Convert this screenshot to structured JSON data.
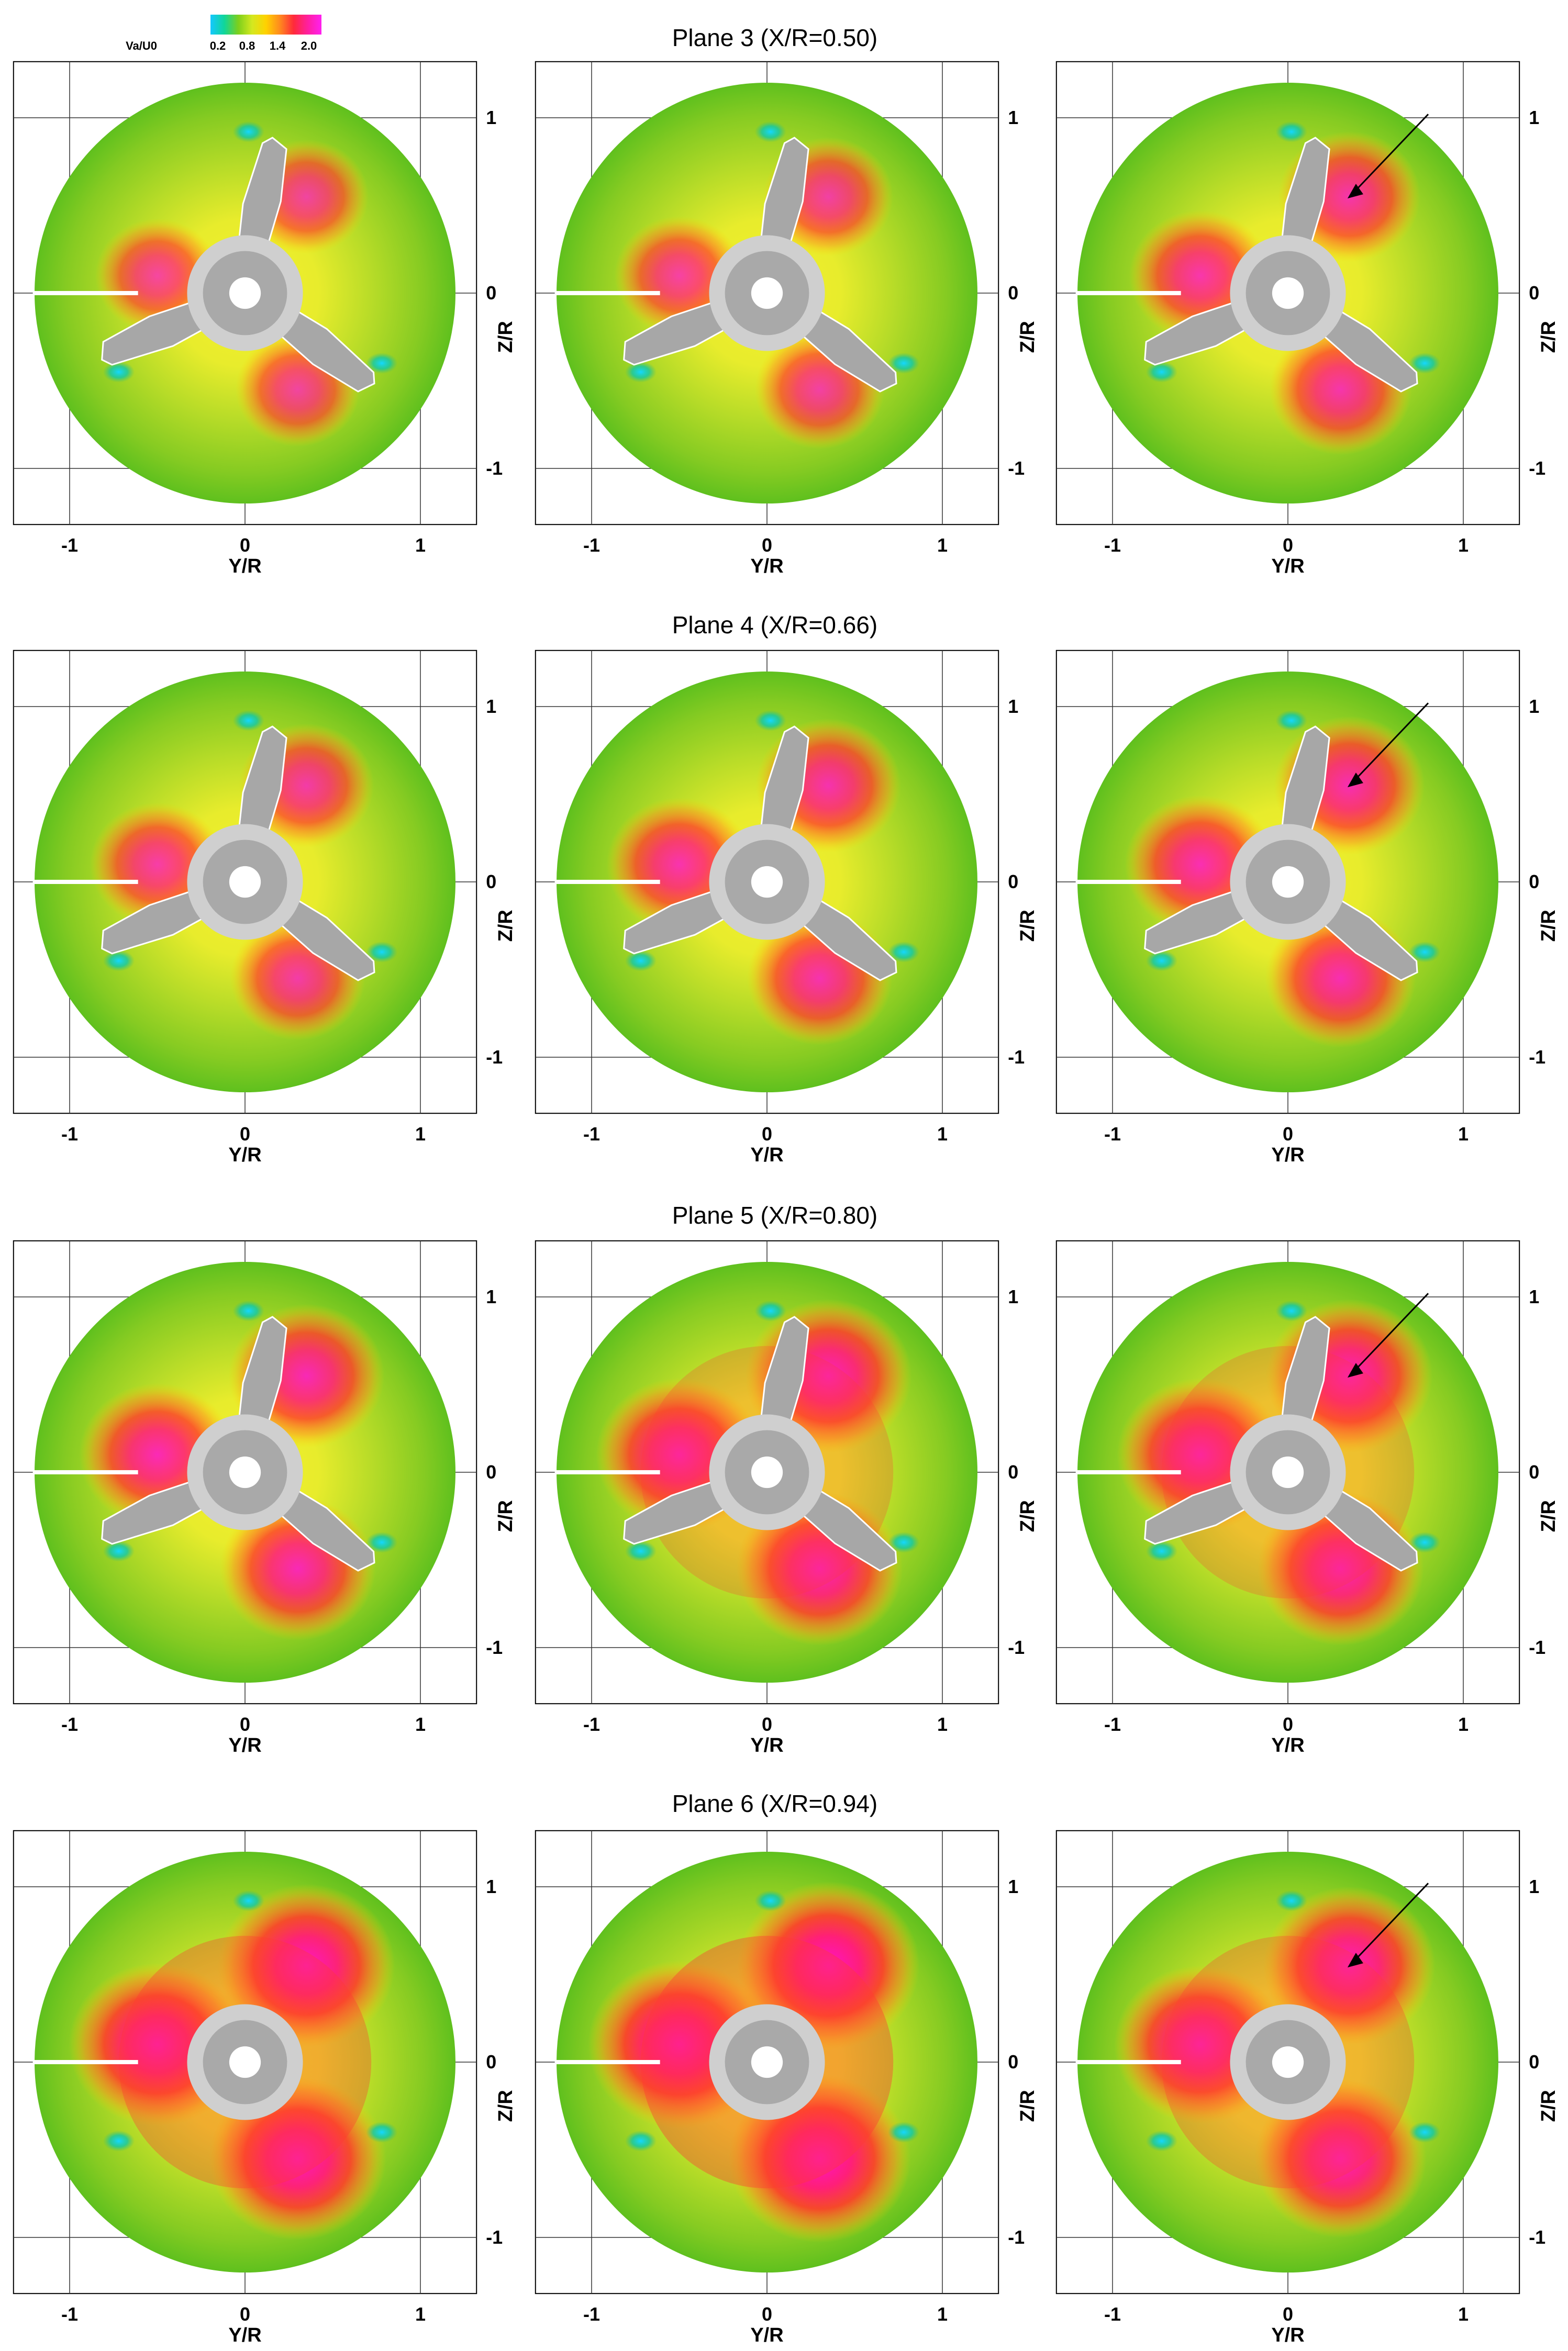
{
  "colorbar": {
    "title": "Va/U0",
    "ticks": [
      "0.2",
      "0.8",
      "1.4",
      "2.0"
    ],
    "colors": [
      "#14c8ff",
      "#10d69a",
      "#7ccf1c",
      "#d4e820",
      "#ffd200",
      "#ff8a1e",
      "#ff2a3a",
      "#ff1f9e",
      "#ff20f0"
    ]
  },
  "colors": {
    "outer": "#5fc01e",
    "ring": "#a6d629",
    "hub": "#a9a9a9",
    "blade": "#a7a7a7",
    "leak_blank": "#ffffff"
  },
  "chart_data": {
    "type": "heatmap",
    "quantity": "Va/U0",
    "xlabel": "Y/R",
    "ylabel": "Z/R",
    "xticks": [
      "-1",
      "0",
      "1"
    ],
    "yticks": [
      "1",
      "0",
      "-1"
    ],
    "xlim": [
      -1.3,
      1.3
    ],
    "ylim": [
      -1.3,
      1.3
    ],
    "grid": true,
    "rows": [
      {
        "title": "Plane 3 (X/R=0.50)",
        "xr": 0.5,
        "panels": [
          {
            "intensity": 0.45,
            "arrow": false
          },
          {
            "intensity": 0.5,
            "arrow": false
          },
          {
            "intensity": 0.62,
            "arrow": true
          }
        ]
      },
      {
        "title": "Plane 4 (X/R=0.66)",
        "xr": 0.66,
        "panels": [
          {
            "intensity": 0.55,
            "arrow": false
          },
          {
            "intensity": 0.65,
            "arrow": false
          },
          {
            "intensity": 0.7,
            "arrow": true
          }
        ]
      },
      {
        "title": "Plane 5 (X/R=0.80)",
        "xr": 0.8,
        "panels": [
          {
            "intensity": 0.75,
            "arrow": false
          },
          {
            "intensity": 0.85,
            "arrow": false
          },
          {
            "intensity": 0.85,
            "arrow": true
          }
        ]
      },
      {
        "title": "Plane 6 (X/R=0.94)",
        "xr": 0.94,
        "panels": [
          {
            "intensity": 0.95,
            "arrow": false
          },
          {
            "intensity": 1.0,
            "arrow": false
          },
          {
            "intensity": 0.9,
            "arrow": true
          }
        ]
      }
    ]
  }
}
